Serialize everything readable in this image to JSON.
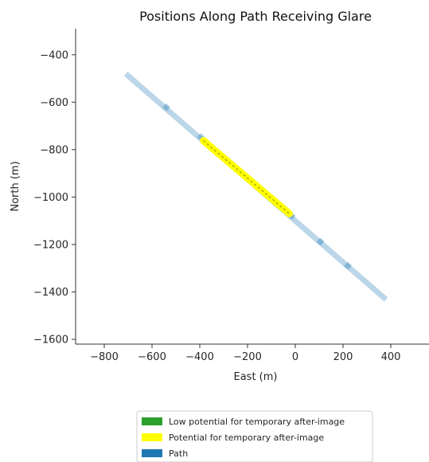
{
  "chart_data": {
    "type": "line",
    "title": "Positions Along Path Receiving Glare",
    "xlabel": "East (m)",
    "ylabel": "North (m)",
    "xlim": [
      -920,
      560
    ],
    "ylim": [
      -1620,
      -290
    ],
    "xticks": [
      -800,
      -600,
      -400,
      -200,
      0,
      200,
      400
    ],
    "yticks": [
      -1600,
      -1400,
      -1200,
      -1000,
      -800,
      -600,
      -400
    ],
    "xtick_labels": [
      "−800",
      "−600",
      "−400",
      "−200",
      "0",
      "200",
      "400"
    ],
    "ytick_labels": [
      "−1600",
      "−1400",
      "−1200",
      "−1000",
      "−800",
      "−600",
      "−400"
    ],
    "grid": false,
    "legend_position": "bottom",
    "series": [
      {
        "name": "Path",
        "color": "#1f77b4",
        "opacity": 0.3,
        "x": [
          -710,
          380
        ],
        "y": [
          -480,
          -1432
        ],
        "vertices": {
          "x": [
            -540,
            -395,
            -15,
            105,
            220
          ],
          "y": [
            -621,
            -747,
            -1079,
            -1188,
            -1290
          ]
        }
      },
      {
        "name": "Potential for temporary after-image",
        "color": "#ffff00",
        "x": [
          -385,
          -25
        ],
        "y": [
          -762,
          -1070
        ]
      },
      {
        "name": "Low potential for temporary after-image",
        "color": "#2ca02c",
        "x": [],
        "y": []
      }
    ],
    "legend_order": [
      "Low potential for temporary after-image",
      "Potential for temporary after-image",
      "Path"
    ]
  }
}
